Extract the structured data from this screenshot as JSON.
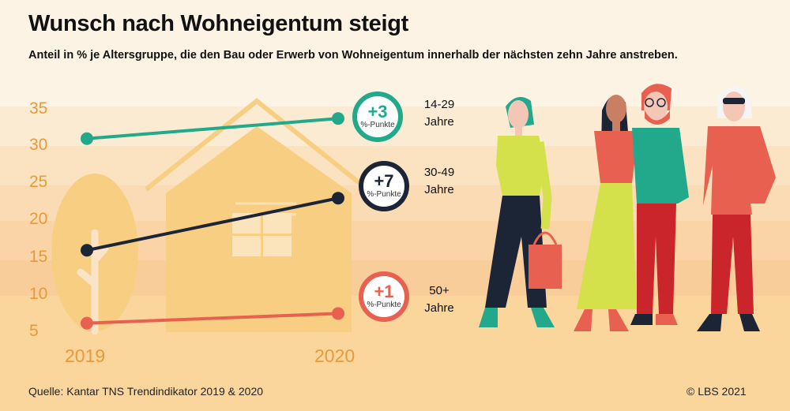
{
  "title": "Wunsch nach Wohneigentum steigt",
  "subtitle": "Anteil in % je Altersgruppe, die den Bau oder Erwerb von Wohneigentum innerhalb der nächsten zehn Jahre anstreben.",
  "chart_data": {
    "type": "line",
    "x": [
      "2019",
      "2020"
    ],
    "ylim": [
      5,
      35
    ],
    "yticks": [
      "35",
      "30",
      "25",
      "20",
      "15",
      "10",
      "5"
    ],
    "grid": false,
    "series": [
      {
        "name": "14-29 Jahre",
        "label_lines": [
          "14-29",
          "Jahre"
        ],
        "values": [
          31,
          33.7
        ],
        "color": "#22a88a",
        "badge": {
          "value": "+3",
          "unit": "%-Punkte"
        }
      },
      {
        "name": "30-49 Jahre",
        "label_lines": [
          "30-49",
          "Jahre"
        ],
        "values": [
          16,
          23
        ],
        "color": "#1b2536",
        "badge": {
          "value": "+7",
          "unit": "%-Punkte"
        }
      },
      {
        "name": "50+ Jahre",
        "label_lines": [
          "50+",
          "Jahre"
        ],
        "values": [
          6.2,
          7.5
        ],
        "color": "#e8604f",
        "badge": {
          "value": "+1",
          "unit": "%-Punkte"
        }
      }
    ]
  },
  "footer": {
    "source": "Quelle: Kantar TNS Trendindikator 2019 & 2020",
    "copyright": "© LBS 2021"
  },
  "colors": {
    "background": "#fbefdc",
    "axis_text": "#e89a3a",
    "house": "#f8cf82",
    "tree": "#f8cf82"
  }
}
